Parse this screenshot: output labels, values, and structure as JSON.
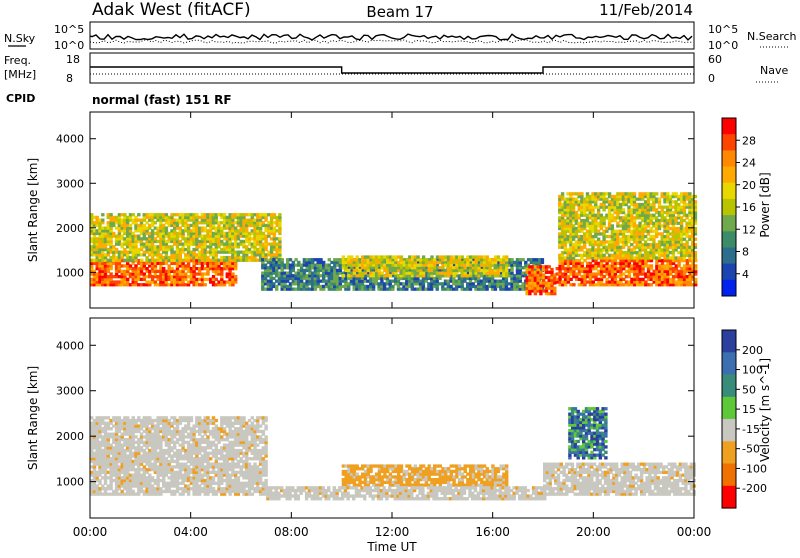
{
  "header": {
    "station": "Adak West (fitACF)",
    "beam": "Beam 17",
    "date": "11/Feb/2014"
  },
  "top_panels": {
    "nsky_label": "N.Sky",
    "nsearch_label": "N.Search",
    "nsky_ticks": [
      "10^5",
      "10^0"
    ],
    "nsearch_ticks": [
      "10^5",
      "10^0"
    ],
    "freq_label_line1": "Freq.",
    "freq_label_line2": "[MHz]",
    "freq_ticks": [
      "18",
      "8"
    ],
    "nave_label": "Nave",
    "nave_ticks": [
      "60",
      "0"
    ],
    "cpid_label": "CPID",
    "cpid_text": "normal (fast) 151 RF"
  },
  "chart_data": [
    {
      "type": "heatmap",
      "name": "power",
      "ylabel": "Slant Range [km]",
      "yticks": [
        1000,
        2000,
        3000,
        4000
      ],
      "ylim": [
        200,
        4600
      ],
      "xlim": [
        0,
        24
      ],
      "colorbar_label": "Power [dB]",
      "colorbar_ticks": [
        "28",
        "24",
        "20",
        "16",
        "12",
        "8",
        "4"
      ],
      "colorbar_colors": [
        "#ff0000",
        "#ff4400",
        "#ff8800",
        "#ffaa00",
        "#e8d800",
        "#b8c400",
        "#70a84c",
        "#3c8c6a",
        "#2c6e8c",
        "#1c44b0",
        "#0022ee"
      ],
      "regions": [
        {
          "t0": 0.0,
          "t1": 5.8,
          "r0": 700,
          "r1": 1250,
          "level": "high"
        },
        {
          "t0": 0.0,
          "t1": 7.5,
          "r0": 1250,
          "r1": 2300,
          "level": "mid"
        },
        {
          "t0": 6.8,
          "t1": 18.0,
          "r0": 600,
          "r1": 1300,
          "level": "low"
        },
        {
          "t0": 10.0,
          "t1": 16.5,
          "r0": 900,
          "r1": 1350,
          "level": "mid"
        },
        {
          "t0": 17.3,
          "t1": 18.5,
          "r0": 500,
          "r1": 1150,
          "level": "high"
        },
        {
          "t0": 18.5,
          "t1": 24.0,
          "r0": 700,
          "r1": 1300,
          "level": "high"
        },
        {
          "t0": 18.6,
          "t1": 24.0,
          "r0": 1300,
          "r1": 2800,
          "level": "mid"
        }
      ]
    },
    {
      "type": "heatmap",
      "name": "velocity",
      "ylabel": "Slant Range [km]",
      "xlabel": "Time UT",
      "xticks": [
        "00:00",
        "04:00",
        "08:00",
        "12:00",
        "16:00",
        "20:00",
        "00:00"
      ],
      "yticks": [
        1000,
        2000,
        3000,
        4000
      ],
      "ylim": [
        200,
        4600
      ],
      "xlim": [
        0,
        24
      ],
      "colorbar_label": "Velocity [m s^-1]",
      "colorbar_ticks": [
        "200",
        "100",
        "50",
        "15",
        "-15",
        "-50",
        "-100",
        "-200"
      ],
      "colorbar_colors": [
        "#2b3f9e",
        "#3c6fb0",
        "#3a8c7a",
        "#5ec83a",
        "#c8c8c0",
        "#f0a020",
        "#f07000",
        "#ff0000"
      ],
      "regions": [
        {
          "t0": 0.0,
          "t1": 7.0,
          "r0": 700,
          "r1": 2400,
          "level": "ground"
        },
        {
          "t0": 10.0,
          "t1": 16.5,
          "r0": 900,
          "r1": 1350,
          "level": "negative"
        },
        {
          "t0": 7.0,
          "t1": 18.0,
          "r0": 600,
          "r1": 900,
          "level": "ground"
        },
        {
          "t0": 18.0,
          "t1": 24.0,
          "r0": 700,
          "r1": 1400,
          "level": "ground"
        },
        {
          "t0": 19.0,
          "t1": 20.5,
          "r0": 1500,
          "r1": 2600,
          "level": "positive"
        }
      ]
    }
  ]
}
